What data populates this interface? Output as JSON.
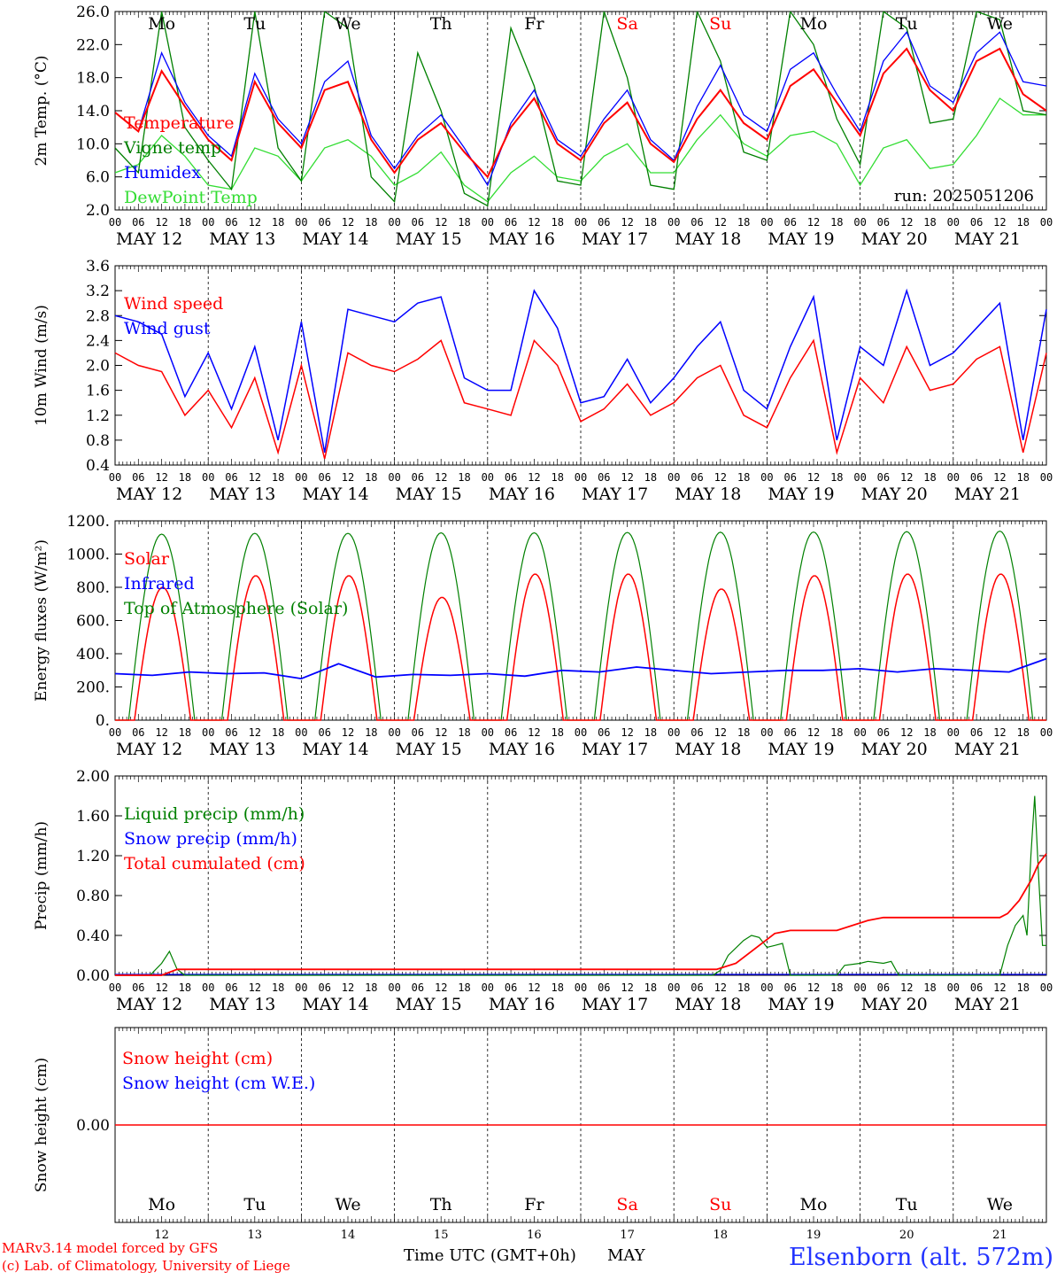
{
  "run_label": "run: 2025051206",
  "footer": {
    "model": "MARv3.14 model forced by GFS",
    "copyright": "(c) Lab. of Climatology, University of Liege",
    "time_axis": "Time UTC (GMT+0h)",
    "month": "MAY",
    "station": "Elsenborn (alt. 572m)"
  },
  "hour_ticks": [
    "00",
    "06",
    "12",
    "18"
  ],
  "hour_ticks_end": "00",
  "date_labels": [
    "MAY 12",
    "MAY 13",
    "MAY 14",
    "MAY 15",
    "MAY 16",
    "MAY 17",
    "MAY 18",
    "MAY 19",
    "MAY 20",
    "MAY 21"
  ],
  "weekdays": [
    "Mo",
    "Tu",
    "We",
    "Th",
    "Fr",
    "Sa",
    "Su",
    "Mo",
    "Tu",
    "We"
  ],
  "weekday_colors": [
    "#000000",
    "#000000",
    "#000000",
    "#000000",
    "#000000",
    "#ff0000",
    "#ff0000",
    "#000000",
    "#000000",
    "#000000"
  ],
  "day_numbers": [
    "12",
    "13",
    "14",
    "15",
    "16",
    "17",
    "18",
    "19",
    "20",
    "21"
  ],
  "colors": {
    "red": "#ff0000",
    "blue": "#0000ff",
    "green": "#008000",
    "lightgreen": "#33dd33",
    "station": "#2233ff"
  },
  "chart_data": [
    {
      "type": "line",
      "ylabel": "2m Temp. (°C)",
      "ylim": [
        2.0,
        26.0
      ],
      "yticks": [
        "2.0",
        "6.0",
        "10.0",
        "14.0",
        "18.0",
        "22.0",
        "26.0"
      ],
      "legend": [
        {
          "name": "Temperature",
          "color": "#ff0000"
        },
        {
          "name": "Vigne temp",
          "color": "#008000"
        },
        {
          "name": "Humidex",
          "color": "#0000ff"
        },
        {
          "name": "DewPoint Temp",
          "color": "#33dd33"
        }
      ],
      "x_hours": [
        0,
        6,
        12,
        18,
        24,
        30,
        36,
        42,
        48,
        54,
        60,
        66,
        72,
        78,
        84,
        90,
        96,
        102,
        108,
        114,
        120,
        126,
        132,
        138,
        144,
        150,
        156,
        162,
        168,
        174,
        180,
        186,
        192,
        198,
        204,
        210,
        216,
        222,
        228,
        234,
        240
      ],
      "series": [
        {
          "name": "Temperature",
          "color": "#ff0000",
          "values": [
            13.8,
            11.5,
            18.8,
            14.5,
            10.5,
            8.0,
            17.5,
            12.5,
            9.5,
            16.5,
            17.5,
            10.5,
            6.5,
            10.5,
            12.5,
            9.0,
            6.0,
            12.0,
            15.5,
            10.0,
            8.0,
            12.5,
            15.0,
            10.0,
            7.8,
            13.0,
            16.5,
            12.5,
            10.5,
            17.0,
            19.0,
            15.0,
            11.0,
            18.5,
            21.5,
            16.5,
            14.0,
            20.0,
            21.5,
            16.0,
            14.0
          ]
        },
        {
          "name": "Vigne temp",
          "color": "#008000",
          "values": [
            9.5,
            6.5,
            26.0,
            12.0,
            8.0,
            4.5,
            27.0,
            9.5,
            5.5,
            26.0,
            24.0,
            6.0,
            3.0,
            21.0,
            14.0,
            4.0,
            2.5,
            24.0,
            17.0,
            5.5,
            5.0,
            26.0,
            18.0,
            5.0,
            4.5,
            26.0,
            20.0,
            9.0,
            8.0,
            26.0,
            22.0,
            13.0,
            7.5,
            28.0,
            24.0,
            12.5,
            13.0,
            28.0,
            25.0,
            14.0,
            13.5
          ]
        },
        {
          "name": "Humidex",
          "color": "#0000ff",
          "values": [
            13.8,
            11.5,
            21.0,
            15.0,
            11.0,
            8.5,
            18.5,
            13.0,
            10.0,
            17.5,
            20.0,
            11.0,
            7.0,
            11.0,
            13.5,
            9.5,
            5.0,
            12.5,
            16.5,
            10.5,
            8.5,
            13.0,
            16.5,
            10.5,
            8.0,
            14.5,
            19.5,
            13.5,
            11.5,
            19.0,
            21.0,
            16.0,
            11.5,
            20.0,
            23.5,
            17.0,
            15.0,
            21.0,
            23.5,
            17.5,
            17.0
          ]
        },
        {
          "name": "DewPoint Temp",
          "color": "#33dd33",
          "values": [
            6.5,
            7.5,
            11.0,
            8.5,
            5.0,
            4.5,
            9.5,
            8.5,
            5.5,
            9.5,
            10.5,
            8.5,
            5.0,
            6.5,
            9.0,
            5.0,
            3.0,
            6.5,
            8.5,
            6.0,
            5.5,
            8.5,
            10.0,
            6.5,
            6.5,
            10.5,
            13.5,
            10.0,
            8.5,
            11.0,
            11.5,
            10.0,
            5.0,
            9.5,
            10.5,
            7.0,
            7.5,
            11.0,
            15.5,
            13.5,
            13.5
          ]
        }
      ]
    },
    {
      "type": "line",
      "ylabel": "10m Wind (m/s)",
      "ylim": [
        0.4,
        3.6
      ],
      "yticks": [
        "0.4",
        "0.8",
        "1.2",
        "1.6",
        "2.0",
        "2.4",
        "2.8",
        "3.2",
        "3.6"
      ],
      "legend": [
        {
          "name": "Wind speed",
          "color": "#ff0000"
        },
        {
          "name": "Wind gust",
          "color": "#0000ff"
        }
      ],
      "x_hours": [
        0,
        6,
        12,
        18,
        24,
        30,
        36,
        42,
        48,
        54,
        60,
        66,
        72,
        78,
        84,
        90,
        96,
        102,
        108,
        114,
        120,
        126,
        132,
        138,
        144,
        150,
        156,
        162,
        168,
        174,
        180,
        186,
        192,
        198,
        204,
        210,
        216,
        222,
        228,
        234,
        240
      ],
      "series": [
        {
          "name": "Wind speed",
          "color": "#ff0000",
          "values": [
            2.2,
            2.0,
            1.9,
            1.2,
            1.6,
            1.0,
            1.8,
            0.6,
            2.0,
            0.5,
            2.2,
            2.0,
            1.9,
            2.1,
            2.4,
            1.4,
            1.3,
            1.2,
            2.4,
            2.0,
            1.1,
            1.3,
            1.7,
            1.2,
            1.4,
            1.8,
            2.0,
            1.2,
            1.0,
            1.8,
            2.4,
            0.6,
            1.8,
            1.4,
            2.3,
            1.6,
            1.7,
            2.1,
            2.3,
            0.6,
            2.2
          ]
        },
        {
          "name": "Wind gust",
          "color": "#0000ff",
          "values": [
            2.8,
            2.7,
            2.5,
            1.5,
            2.2,
            1.3,
            2.3,
            0.8,
            2.7,
            0.6,
            2.9,
            2.8,
            2.7,
            3.0,
            3.1,
            1.8,
            1.6,
            1.6,
            3.2,
            2.6,
            1.4,
            1.5,
            2.1,
            1.4,
            1.8,
            2.3,
            2.7,
            1.6,
            1.3,
            2.3,
            3.1,
            0.8,
            2.3,
            2.0,
            3.2,
            2.0,
            2.2,
            2.6,
            3.0,
            0.8,
            2.9
          ]
        }
      ]
    },
    {
      "type": "line",
      "ylabel": "Energy fluxes (W/m²)",
      "ylim": [
        0,
        1200
      ],
      "yticks": [
        "0.",
        "200.",
        "400.",
        "600.",
        "800.",
        "1000.",
        "1200."
      ],
      "legend": [
        {
          "name": "Solar",
          "color": "#ff0000"
        },
        {
          "name": "Infrared",
          "color": "#0000ff"
        },
        {
          "name": "Top of Atmosphere (Solar)",
          "color": "#008000"
        }
      ],
      "toa_peak": [
        1120,
        1125,
        1125,
        1128,
        1128,
        1130,
        1132,
        1133,
        1135,
        1138
      ],
      "solar_peak": [
        800,
        870,
        870,
        740,
        880,
        880,
        790,
        870,
        880,
        880
      ],
      "infrared": [
        280,
        270,
        290,
        280,
        285,
        250,
        340,
        260,
        275,
        270,
        280,
        265,
        300,
        290,
        320,
        300,
        280,
        290,
        300,
        300,
        310,
        290,
        310,
        300,
        290,
        370
      ]
    },
    {
      "type": "line",
      "ylabel": "Precip (mm/h)",
      "ylim": [
        0.0,
        2.0
      ],
      "yticks": [
        "0.00",
        "0.40",
        "0.80",
        "1.20",
        "1.60",
        "2.00"
      ],
      "legend": [
        {
          "name": "Liquid precip (mm/h)",
          "color": "#008000"
        },
        {
          "name": "Snow precip (mm/h)",
          "color": "#0000ff"
        },
        {
          "name": "Total cumulated (cm)",
          "color": "#ff0000"
        }
      ],
      "liquid_points": [
        [
          0,
          0
        ],
        [
          9,
          0
        ],
        [
          12,
          0.12
        ],
        [
          14,
          0.24
        ],
        [
          16,
          0.06
        ],
        [
          18,
          0
        ],
        [
          154,
          0
        ],
        [
          156,
          0.05
        ],
        [
          158,
          0.2
        ],
        [
          162,
          0.35
        ],
        [
          164,
          0.4
        ],
        [
          166,
          0.38
        ],
        [
          168,
          0.28
        ],
        [
          170,
          0.3
        ],
        [
          172,
          0.32
        ],
        [
          174,
          0
        ],
        [
          186,
          0
        ],
        [
          188,
          0.1
        ],
        [
          192,
          0.12
        ],
        [
          194,
          0.14
        ],
        [
          198,
          0.12
        ],
        [
          200,
          0.14
        ],
        [
          202,
          0
        ],
        [
          228,
          0
        ],
        [
          230,
          0.3
        ],
        [
          232,
          0.5
        ],
        [
          234,
          0.6
        ],
        [
          235,
          0.4
        ],
        [
          236,
          1.2
        ],
        [
          237,
          1.8
        ],
        [
          238,
          1.0
        ],
        [
          239,
          0.3
        ],
        [
          240,
          0.3
        ]
      ],
      "total_points": [
        [
          0,
          0
        ],
        [
          12,
          0
        ],
        [
          16,
          0.06
        ],
        [
          155,
          0.06
        ],
        [
          160,
          0.12
        ],
        [
          166,
          0.3
        ],
        [
          170,
          0.42
        ],
        [
          174,
          0.45
        ],
        [
          186,
          0.45
        ],
        [
          194,
          0.55
        ],
        [
          198,
          0.58
        ],
        [
          228,
          0.58
        ],
        [
          230,
          0.62
        ],
        [
          233,
          0.75
        ],
        [
          236,
          0.95
        ],
        [
          238,
          1.12
        ],
        [
          240,
          1.22
        ]
      ]
    },
    {
      "type": "line",
      "ylabel": "Snow height (cm)",
      "yticks": [
        "0.00"
      ],
      "legend": [
        {
          "name": "Snow height (cm)",
          "color": "#ff0000"
        },
        {
          "name": "Snow height (cm W.E.)",
          "color": "#0000ff"
        }
      ],
      "values": [
        0.0,
        0.0
      ]
    }
  ]
}
